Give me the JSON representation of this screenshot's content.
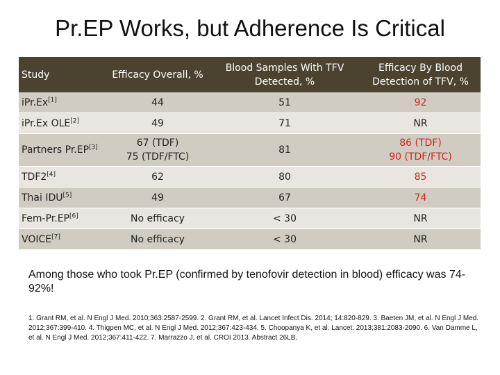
{
  "slide": {
    "title": "Pr.EP Works, but Adherence Is Critical",
    "callout": "Among those who took Pr.EP (confirmed by tenofovir detection in blood) efficacy was 74-92%!",
    "references": "1. Grant RM, et al. N Engl J Med. 2010;363:2587-2599. 2. Grant RM, et al. Lancet Infect Dis. 2014; 14:820-829. 3. Baeten JM, et al. N Engl J Med. 2012;367:399-410. 4. Thigpen MC, et al. N Engl J Med. 2012;367:423-434. 5. Choopanya K, et al. Lancet. 2013;381:2083-2090. 6. Van Damme L, et al. N Engl J Med. 2012;367:411-422. 7. Marrazzo J, et al. CROI 2013. Abstract 26LB."
  },
  "table": {
    "headers": [
      "Study",
      "Efficacy Overall, %",
      "Blood Samples With TFV Detected, %",
      "Efficacy By Blood Detection of TFV, %"
    ],
    "rows": [
      {
        "study": "iPr.Ex",
        "ref": "[1]",
        "efficacy": "44",
        "tfv": "51",
        "by_blood": "92",
        "highlight": true
      },
      {
        "study": "iPr.Ex OLE",
        "ref": "[2]",
        "efficacy": "49",
        "tfv": "71",
        "by_blood": "NR",
        "highlight": false
      },
      {
        "study": "Partners Pr.EP",
        "ref": "[3]",
        "efficacy_line1": "67 (TDF)",
        "efficacy_line2": "75 (TDF/FTC)",
        "tfv": "81",
        "by_blood_line1": "86 (TDF)",
        "by_blood_line2": "90 (TDF/FTC)",
        "highlight": true
      },
      {
        "study": "TDF2",
        "ref": "[4]",
        "efficacy": "62",
        "tfv": "80",
        "by_blood": "85",
        "highlight": true
      },
      {
        "study": "Thai IDU",
        "ref": "[5]",
        "efficacy": "49",
        "tfv": "67",
        "by_blood": "74",
        "highlight": true
      },
      {
        "study": "Fem-Pr.EP",
        "ref": "[6]",
        "efficacy": "No efficacy",
        "tfv": "< 30",
        "by_blood": "NR",
        "highlight": false
      },
      {
        "study": "VOICE",
        "ref": "[7]",
        "efficacy": "No efficacy",
        "tfv": "< 30",
        "by_blood": "NR",
        "highlight": false
      }
    ]
  },
  "colors": {
    "header_bg": "#4b4330",
    "row_dark": "#d0ccc1",
    "row_light": "#e8e6df",
    "highlight_text": "#d0251a"
  }
}
